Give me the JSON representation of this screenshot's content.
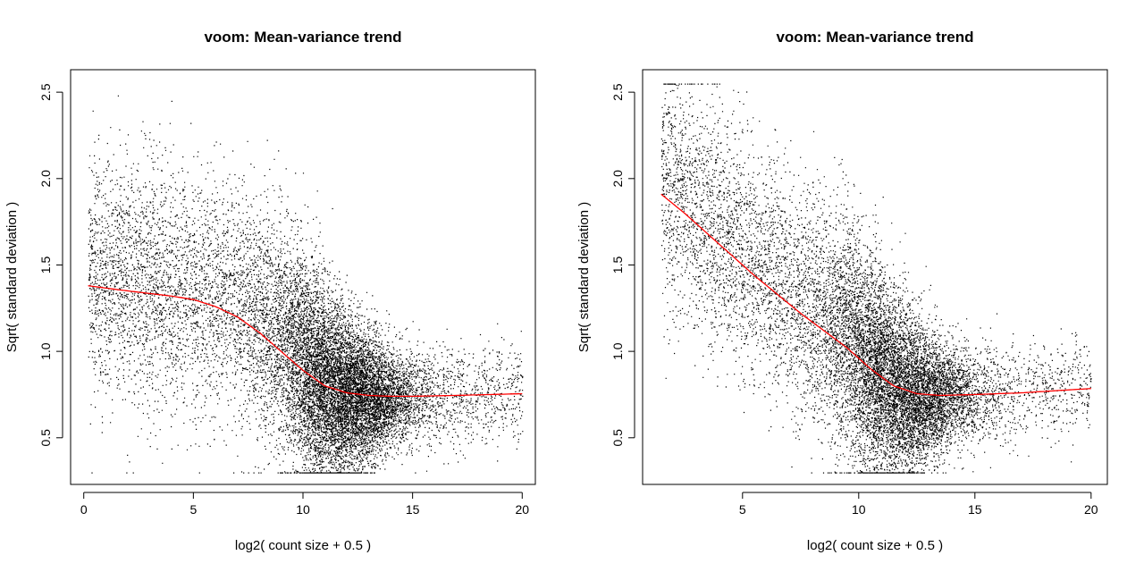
{
  "colors": {
    "points": "#000000",
    "trend": "#ff0000"
  },
  "chart_data": [
    {
      "type": "scatter",
      "title": "voom: Mean-variance trend",
      "xlabel": "log2( count size + 0.5 )",
      "ylabel": "Sqrt( standard deviation )",
      "xlim": [
        -0.6,
        20.6
      ],
      "ylim": [
        0.23,
        2.63
      ],
      "xticks": [
        0,
        5,
        10,
        15,
        20
      ],
      "yticks": [
        0.5,
        1.0,
        1.5,
        2.0,
        2.5
      ],
      "xtick_labels": [
        "0",
        "5",
        "10",
        "15",
        "20"
      ],
      "ytick_labels": [
        "0.5",
        "1.0",
        "1.5",
        "2.0",
        "2.5"
      ],
      "grid": false,
      "legend": "none",
      "point_count_approx": 15000,
      "trend_line": {
        "name": "",
        "color": "#ff0000",
        "x": [
          0.2,
          2,
          4,
          5,
          6,
          7,
          8,
          9,
          10,
          11,
          12,
          13,
          14,
          15,
          17,
          20
        ],
        "y": [
          1.38,
          1.35,
          1.32,
          1.3,
          1.26,
          1.2,
          1.11,
          1.0,
          0.89,
          0.8,
          0.76,
          0.745,
          0.74,
          0.74,
          0.745,
          0.755
        ]
      }
    },
    {
      "type": "scatter",
      "title": "voom: Mean-variance trend",
      "xlabel": "log2( count size + 0.5 )",
      "ylabel": "Sqrt( standard deviation )",
      "xlim": [
        0.7,
        20.7
      ],
      "ylim": [
        0.23,
        2.63
      ],
      "xticks": [
        5,
        10,
        15,
        20
      ],
      "yticks": [
        0.5,
        1.0,
        1.5,
        2.0,
        2.5
      ],
      "xtick_labels": [
        "5",
        "10",
        "15",
        "20"
      ],
      "ytick_labels": [
        "0.5",
        "1.0",
        "1.5",
        "2.0",
        "2.5"
      ],
      "grid": false,
      "legend": "none",
      "point_count_approx": 13000,
      "trend_line": {
        "name": "",
        "color": "#ff0000",
        "x": [
          1.5,
          2.5,
          3.5,
          4.5,
          5.5,
          6.5,
          7.5,
          8.5,
          9.5,
          10.5,
          11.5,
          12.5,
          13.5,
          15,
          17,
          20
        ],
        "y": [
          1.91,
          1.8,
          1.68,
          1.56,
          1.44,
          1.33,
          1.22,
          1.12,
          1.02,
          0.9,
          0.8,
          0.755,
          0.745,
          0.75,
          0.76,
          0.785
        ]
      }
    }
  ]
}
